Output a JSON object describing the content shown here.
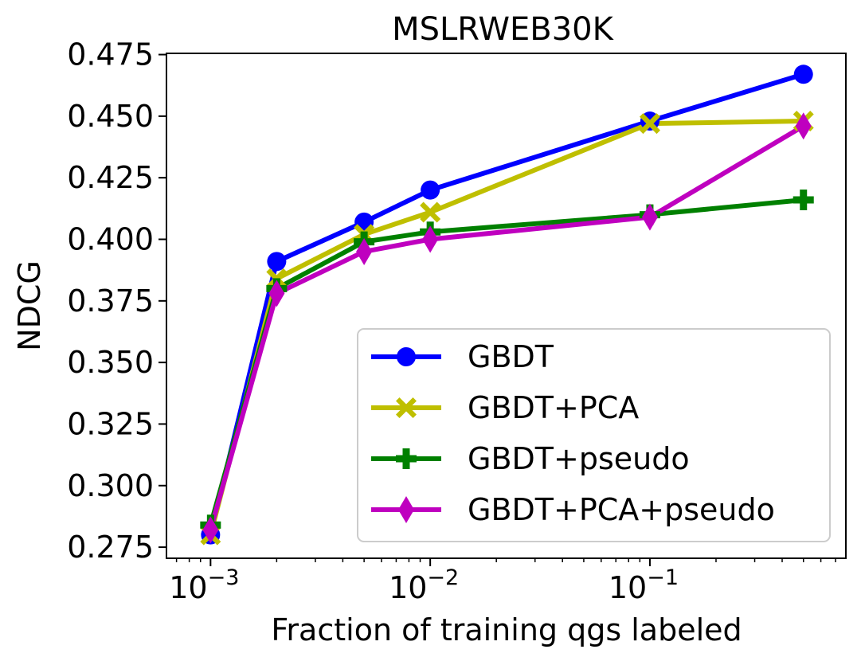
{
  "chart_data": {
    "type": "line",
    "title": "MSLRWEB30K",
    "xlabel": "Fraction of training qgs labeled",
    "ylabel": "NDCG",
    "xscale": "log",
    "x": [
      0.001,
      0.002,
      0.005,
      0.01,
      0.1,
      0.5
    ],
    "xlim": [
      0.00063,
      0.78
    ],
    "ylim": [
      0.2705,
      0.4755
    ],
    "xticks": [
      {
        "value": 0.001,
        "base": "10",
        "exp": "−3"
      },
      {
        "value": 0.01,
        "base": "10",
        "exp": "−2"
      },
      {
        "value": 0.1,
        "base": "10",
        "exp": "−1"
      }
    ],
    "yticks": [
      {
        "value": 0.275,
        "label": "0.275"
      },
      {
        "value": 0.3,
        "label": "0.300"
      },
      {
        "value": 0.325,
        "label": "0.325"
      },
      {
        "value": 0.35,
        "label": "0.350"
      },
      {
        "value": 0.375,
        "label": "0.375"
      },
      {
        "value": 0.4,
        "label": "0.400"
      },
      {
        "value": 0.425,
        "label": "0.425"
      },
      {
        "value": 0.45,
        "label": "0.450"
      },
      {
        "value": 0.475,
        "label": "0.475"
      }
    ],
    "series": [
      {
        "name": "GBDT",
        "color": "#0000ff",
        "marker": "circle",
        "values": [
          0.28,
          0.391,
          0.407,
          0.42,
          0.448,
          0.467
        ]
      },
      {
        "name": "GBDT+PCA",
        "color": "#bfbf00",
        "marker": "x-filled",
        "values": [
          0.28,
          0.384,
          0.402,
          0.411,
          0.447,
          0.448
        ]
      },
      {
        "name": "GBDT+pseudo",
        "color": "#008000",
        "marker": "plus-filled",
        "values": [
          0.284,
          0.38,
          0.399,
          0.403,
          0.41,
          0.416
        ]
      },
      {
        "name": "GBDT+PCA+pseudo",
        "color": "#bf00bf",
        "marker": "thin-diamond",
        "values": [
          0.282,
          0.378,
          0.395,
          0.4,
          0.409,
          0.446
        ]
      }
    ],
    "legend": {
      "position": "lower-right"
    }
  }
}
